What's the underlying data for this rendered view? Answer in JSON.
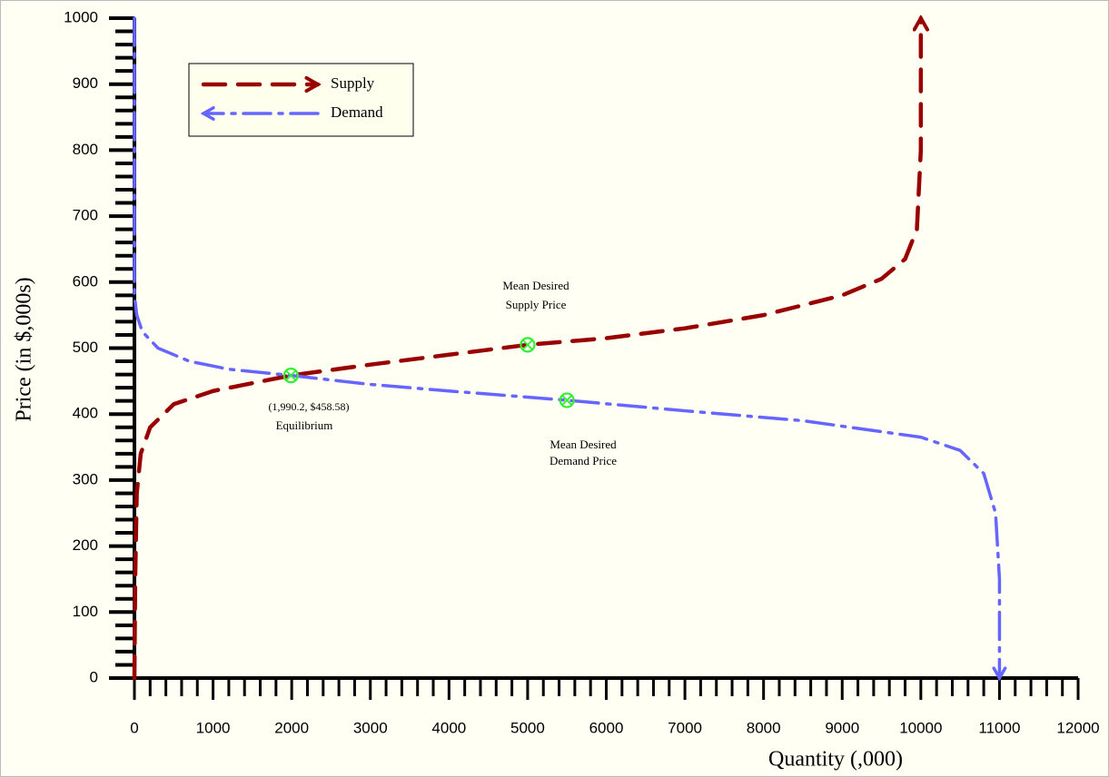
{
  "chart_data": {
    "type": "line",
    "x_label": "Quantity (,000)",
    "y_label": "Price (in $,000s)",
    "xlim": [
      0,
      12000
    ],
    "xticks": [
      0,
      1000,
      2000,
      3000,
      4000,
      5000,
      6000,
      7000,
      8000,
      9000,
      10000,
      11000,
      12000
    ],
    "ylim": [
      0,
      1000
    ],
    "yticks": [
      0,
      100,
      200,
      300,
      400,
      500,
      600,
      700,
      800,
      900,
      1000
    ],
    "legend": "upper left",
    "series": [
      {
        "name": "Supply",
        "color": "#990000",
        "x": [
          0,
          10,
          30,
          80,
          200,
          500,
          1000,
          1990.2,
          3000,
          4000,
          5000,
          6000,
          7000,
          8000,
          9000,
          9500,
          9800,
          9950,
          10000,
          10000
        ],
        "values": [
          0,
          150,
          280,
          340,
          380,
          415,
          435,
          458.58,
          475,
          490,
          505,
          515,
          530,
          550,
          580,
          605,
          635,
          680,
          800,
          1000
        ]
      },
      {
        "name": "Demand",
        "color": "#6666ff",
        "x": [
          0,
          0,
          30,
          100,
          300,
          700,
          1200,
          1990.2,
          3000,
          4000,
          5500,
          7000,
          8500,
          10000,
          10500,
          10800,
          10950,
          11000,
          11000
        ],
        "values": [
          1000,
          580,
          550,
          525,
          500,
          480,
          468,
          458.58,
          445,
          435,
          421,
          405,
          390,
          365,
          345,
          310,
          250,
          150,
          0
        ]
      }
    ],
    "points": {
      "color": "#33ee33",
      "x": [
        1990.2,
        5000,
        5500
      ],
      "values": [
        458.58,
        505,
        421
      ]
    },
    "annotations": [
      "Mean Desired",
      "Supply Price",
      "(1,990.2, $458.58)",
      "Equilibrium",
      "Mean Desired",
      "Demand Price"
    ]
  }
}
